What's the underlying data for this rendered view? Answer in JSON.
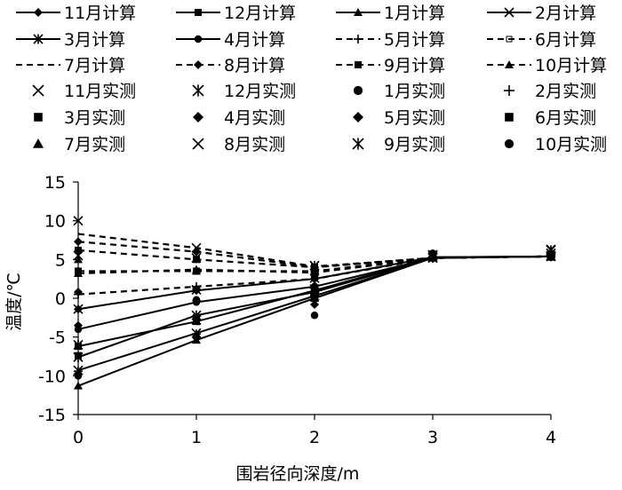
{
  "chart_data": {
    "type": "line",
    "title": "",
    "xlabel": "围岩径向深度/m",
    "ylabel": "温度/℃",
    "xlim": [
      0,
      4
    ],
    "ylim": [
      -15,
      15
    ],
    "xticks": [
      0,
      1,
      2,
      3,
      4
    ],
    "yticks": [
      15,
      10,
      5,
      0,
      -5,
      -10,
      -15
    ],
    "grid": false,
    "legend_position": "top",
    "calc_x": [
      0,
      1,
      2,
      3,
      4
    ],
    "measured_x": [
      0,
      1,
      2,
      3,
      4
    ],
    "series": [
      {
        "name": "11月计算",
        "kind": "calculated",
        "style": "solid",
        "marker": "diamond",
        "values": [
          -1.4,
          1.0,
          2.5,
          5.3,
          5.4
        ]
      },
      {
        "name": "12月计算",
        "kind": "calculated",
        "style": "solid",
        "marker": "square",
        "values": [
          -6.2,
          -3.0,
          1.0,
          5.3,
          5.4
        ]
      },
      {
        "name": "1月计算",
        "kind": "calculated",
        "style": "solid",
        "marker": "triangle",
        "values": [
          -11.3,
          -5.4,
          0.0,
          5.2,
          5.4
        ]
      },
      {
        "name": "2月计算",
        "kind": "calculated",
        "style": "solid",
        "marker": "x",
        "values": [
          -9.3,
          -4.5,
          0.3,
          5.2,
          5.4
        ]
      },
      {
        "name": "3月计算",
        "kind": "calculated",
        "style": "solid",
        "marker": "star",
        "values": [
          -7.6,
          -2.2,
          0.8,
          5.2,
          5.4
        ]
      },
      {
        "name": "4月计算",
        "kind": "calculated",
        "style": "solid",
        "marker": "circle",
        "values": [
          -4.0,
          -0.5,
          1.5,
          5.2,
          5.4
        ]
      },
      {
        "name": "5月计算",
        "kind": "calculated",
        "style": "dashed",
        "marker": "plus",
        "values": [
          0.5,
          1.5,
          2.5,
          5.2,
          5.4
        ]
      },
      {
        "name": "6月计算",
        "kind": "calculated",
        "style": "dashed",
        "marker": "open-square",
        "values": [
          3.5,
          3.5,
          3.5,
          5.2,
          5.4
        ]
      },
      {
        "name": "7月计算",
        "kind": "calculated",
        "style": "dashed",
        "marker": "none",
        "values": [
          8.3,
          6.5,
          4.1,
          5.2,
          5.4
        ]
      },
      {
        "name": "8月计算",
        "kind": "calculated",
        "style": "dashed",
        "marker": "diamond",
        "values": [
          7.3,
          6.0,
          4.0,
          5.2,
          5.4
        ]
      },
      {
        "name": "9月计算",
        "kind": "calculated",
        "style": "dashed",
        "marker": "square",
        "values": [
          6.2,
          5.0,
          4.0,
          5.2,
          5.4
        ]
      },
      {
        "name": "10月计算",
        "kind": "calculated",
        "style": "dashed",
        "marker": "triangle",
        "values": [
          3.2,
          3.7,
          3.3,
          5.2,
          5.4
        ]
      },
      {
        "name": "11月实测",
        "kind": "measured",
        "marker": "x",
        "values": [
          -1.4,
          1.1,
          2.6,
          5.5,
          5.8
        ]
      },
      {
        "name": "12月实测",
        "kind": "measured",
        "marker": "star",
        "values": [
          -6.0,
          -2.8,
          1.2,
          5.3,
          5.5
        ]
      },
      {
        "name": "1月实测",
        "kind": "measured",
        "marker": "circle",
        "values": [
          -10.0,
          -5.0,
          0.2,
          5.2,
          5.3
        ]
      },
      {
        "name": "2月实测",
        "kind": "measured",
        "marker": "plus",
        "values": [
          -9.4,
          -4.6,
          0.5,
          5.3,
          5.5
        ]
      },
      {
        "name": "3月实测",
        "kind": "measured",
        "marker": "square",
        "values": [
          -7.4,
          -2.5,
          0.7,
          5.3,
          5.4
        ]
      },
      {
        "name": "4月实测",
        "kind": "measured",
        "marker": "diamond",
        "values": [
          -3.5,
          -0.3,
          1.6,
          5.4,
          5.6
        ]
      },
      {
        "name": "5月实测",
        "kind": "measured",
        "marker": "diamond",
        "values": [
          0.8,
          1.2,
          -0.8,
          5.3,
          5.5
        ]
      },
      {
        "name": "6月实测",
        "kind": "measured",
        "marker": "square",
        "values": [
          3.5,
          3.5,
          3.0,
          5.2,
          5.3
        ]
      },
      {
        "name": "7月实测",
        "kind": "measured",
        "marker": "triangle",
        "values": [
          5.0,
          3.5,
          3.8,
          5.8,
          6.0
        ]
      },
      {
        "name": "8月实测",
        "kind": "measured",
        "marker": "x",
        "values": [
          10.0,
          6.5,
          4.2,
          5.6,
          6.3
        ]
      },
      {
        "name": "9月实测",
        "kind": "measured",
        "marker": "star",
        "values": [
          5.5,
          5.2,
          4.2,
          5.6,
          6.2
        ]
      },
      {
        "name": "10月实测",
        "kind": "measured",
        "marker": "circle",
        "values": [
          -9.8,
          -0.2,
          -2.2,
          5.8,
          5.7
        ]
      }
    ]
  }
}
